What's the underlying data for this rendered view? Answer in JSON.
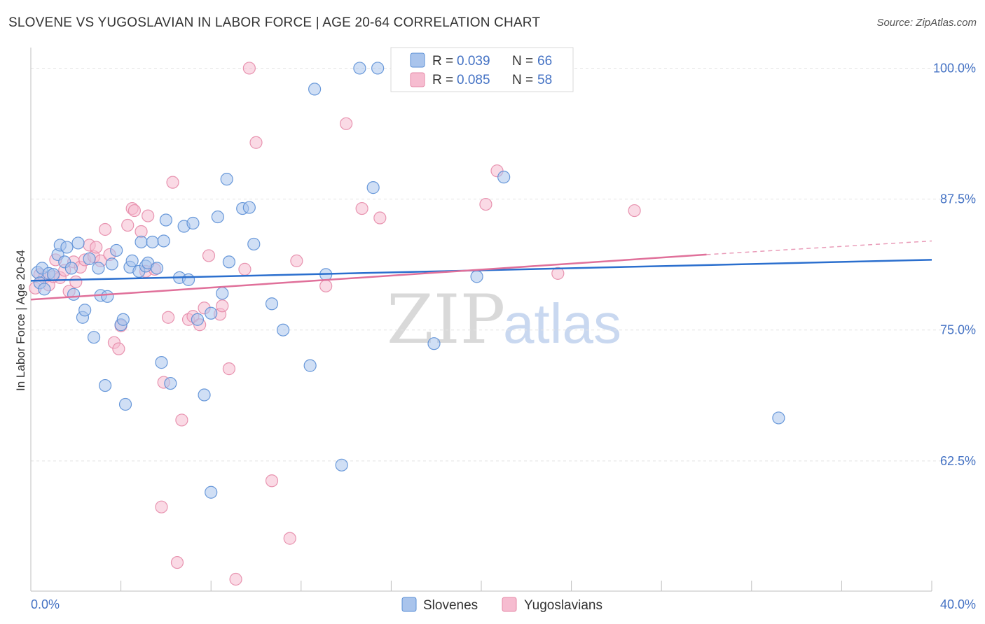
{
  "title": "SLOVENE VS YUGOSLAVIAN IN LABOR FORCE | AGE 20-64 CORRELATION CHART",
  "source": "Source: ZipAtlas.com",
  "colors": {
    "blue_fill": "#a9c4ec",
    "blue_stroke": "#5b8fd6",
    "blue_line": "#2b6fce",
    "pink_fill": "#f6bcd0",
    "pink_stroke": "#e58aa8",
    "pink_line": "#e0709a",
    "grid": "#e3e3e3",
    "tick_text": "#4472c4"
  },
  "chart_data": {
    "type": "scatter",
    "title": "SLOVENE VS YUGOSLAVIAN IN LABOR FORCE | AGE 20-64 CORRELATION CHART",
    "ylabel": "In Labor Force | Age 20-64",
    "xlabel": "",
    "xlim": [
      0,
      40
    ],
    "ylim": [
      51.2,
      101.3
    ],
    "x_tick_labels": [
      "0.0%",
      "40.0%"
    ],
    "y_ticks": [
      {
        "value": 100,
        "label": "100.0%"
      },
      {
        "value": 87.5,
        "label": "87.5%"
      },
      {
        "value": 75,
        "label": "75.0%"
      },
      {
        "value": 62.5,
        "label": "62.5%"
      }
    ],
    "legend": [
      {
        "series": "Slovenes",
        "r_label": "R = ",
        "r_value": "0.039",
        "n_label": "N = ",
        "n_value": "66"
      },
      {
        "series": "Yugoslavians",
        "r_label": "R = ",
        "r_value": "0.085",
        "n_label": "N = ",
        "n_value": "58"
      }
    ],
    "series": [
      {
        "name": "Slovenes",
        "trend": {
          "x0": 0,
          "y0": 79.7,
          "x1": 40,
          "y1": 81.7
        },
        "points": [
          [
            0.3,
            80.5
          ],
          [
            0.4,
            79.5
          ],
          [
            0.5,
            80.9
          ],
          [
            0.6,
            78.9
          ],
          [
            0.8,
            80.4
          ],
          [
            1.0,
            80.3
          ],
          [
            1.2,
            82.2
          ],
          [
            1.3,
            83.1
          ],
          [
            1.5,
            81.5
          ],
          [
            1.6,
            82.9
          ],
          [
            1.8,
            80.9
          ],
          [
            1.9,
            78.4
          ],
          [
            2.1,
            83.3
          ],
          [
            2.3,
            76.2
          ],
          [
            2.4,
            76.9
          ],
          [
            2.6,
            81.8
          ],
          [
            2.8,
            74.3
          ],
          [
            3.0,
            80.9
          ],
          [
            3.1,
            78.3
          ],
          [
            3.3,
            69.7
          ],
          [
            3.4,
            78.2
          ],
          [
            3.6,
            81.3
          ],
          [
            3.8,
            82.6
          ],
          [
            4.0,
            75.5
          ],
          [
            4.1,
            76.0
          ],
          [
            4.2,
            67.9
          ],
          [
            4.4,
            81.0
          ],
          [
            4.5,
            81.6
          ],
          [
            4.8,
            80.6
          ],
          [
            4.9,
            83.4
          ],
          [
            5.1,
            81.1
          ],
          [
            5.2,
            81.4
          ],
          [
            5.4,
            83.4
          ],
          [
            5.6,
            80.9
          ],
          [
            5.8,
            71.9
          ],
          [
            5.9,
            83.5
          ],
          [
            6.0,
            85.5
          ],
          [
            6.2,
            69.9
          ],
          [
            6.6,
            80.0
          ],
          [
            6.8,
            84.9
          ],
          [
            7.0,
            79.8
          ],
          [
            7.2,
            85.2
          ],
          [
            7.4,
            76.0
          ],
          [
            7.7,
            68.8
          ],
          [
            8.0,
            76.6
          ],
          [
            8.3,
            85.8
          ],
          [
            8.5,
            78.5
          ],
          [
            8.7,
            89.4
          ],
          [
            8.8,
            81.5
          ],
          [
            9.4,
            86.6
          ],
          [
            9.7,
            86.7
          ],
          [
            9.9,
            83.2
          ],
          [
            10.7,
            77.5
          ],
          [
            11.2,
            75.0
          ],
          [
            12.4,
            71.6
          ],
          [
            12.6,
            98.0
          ],
          [
            13.1,
            80.3
          ],
          [
            13.8,
            62.1
          ],
          [
            14.6,
            100.0
          ],
          [
            15.2,
            88.6
          ],
          [
            15.4,
            100.0
          ],
          [
            17.9,
            73.7
          ],
          [
            19.8,
            80.1
          ],
          [
            21.0,
            89.6
          ],
          [
            33.2,
            66.6
          ],
          [
            8.0,
            59.5
          ]
        ]
      },
      {
        "name": "Yugoslavians",
        "trend": {
          "x0": 0,
          "y0": 77.9,
          "x1": 30.0,
          "y1": 82.2,
          "dash_x1": 40,
          "dash_y1": 83.5
        },
        "points": [
          [
            0.2,
            79.0
          ],
          [
            0.4,
            80.3
          ],
          [
            0.6,
            80.0
          ],
          [
            0.8,
            79.3
          ],
          [
            1.0,
            80.1
          ],
          [
            1.1,
            81.7
          ],
          [
            1.3,
            80.0
          ],
          [
            1.5,
            80.7
          ],
          [
            1.7,
            78.7
          ],
          [
            1.9,
            81.5
          ],
          [
            2.0,
            79.6
          ],
          [
            2.2,
            81.0
          ],
          [
            2.4,
            81.7
          ],
          [
            2.6,
            83.1
          ],
          [
            2.8,
            82.0
          ],
          [
            2.9,
            82.9
          ],
          [
            3.1,
            81.6
          ],
          [
            3.3,
            84.6
          ],
          [
            3.5,
            82.2
          ],
          [
            3.7,
            73.8
          ],
          [
            3.9,
            73.2
          ],
          [
            4.0,
            75.4
          ],
          [
            4.3,
            85.0
          ],
          [
            4.5,
            86.6
          ],
          [
            4.6,
            86.4
          ],
          [
            4.9,
            84.4
          ],
          [
            5.1,
            80.6
          ],
          [
            5.2,
            85.9
          ],
          [
            5.5,
            80.8
          ],
          [
            5.8,
            58.1
          ],
          [
            5.9,
            70.0
          ],
          [
            6.1,
            76.2
          ],
          [
            6.3,
            89.1
          ],
          [
            6.5,
            52.8
          ],
          [
            6.7,
            66.4
          ],
          [
            7.0,
            76.0
          ],
          [
            7.2,
            76.3
          ],
          [
            7.5,
            75.5
          ],
          [
            7.7,
            77.1
          ],
          [
            7.9,
            82.1
          ],
          [
            8.4,
            76.5
          ],
          [
            8.5,
            77.3
          ],
          [
            8.8,
            71.3
          ],
          [
            9.1,
            51.2
          ],
          [
            9.5,
            80.8
          ],
          [
            9.7,
            100.0
          ],
          [
            10.0,
            92.9
          ],
          [
            10.7,
            60.6
          ],
          [
            11.5,
            55.1
          ],
          [
            11.8,
            81.6
          ],
          [
            13.1,
            79.2
          ],
          [
            14.0,
            94.7
          ],
          [
            14.7,
            86.6
          ],
          [
            15.5,
            85.7
          ],
          [
            20.2,
            87.0
          ],
          [
            20.7,
            90.2
          ],
          [
            23.4,
            80.4
          ],
          [
            26.8,
            86.4
          ]
        ]
      }
    ]
  }
}
